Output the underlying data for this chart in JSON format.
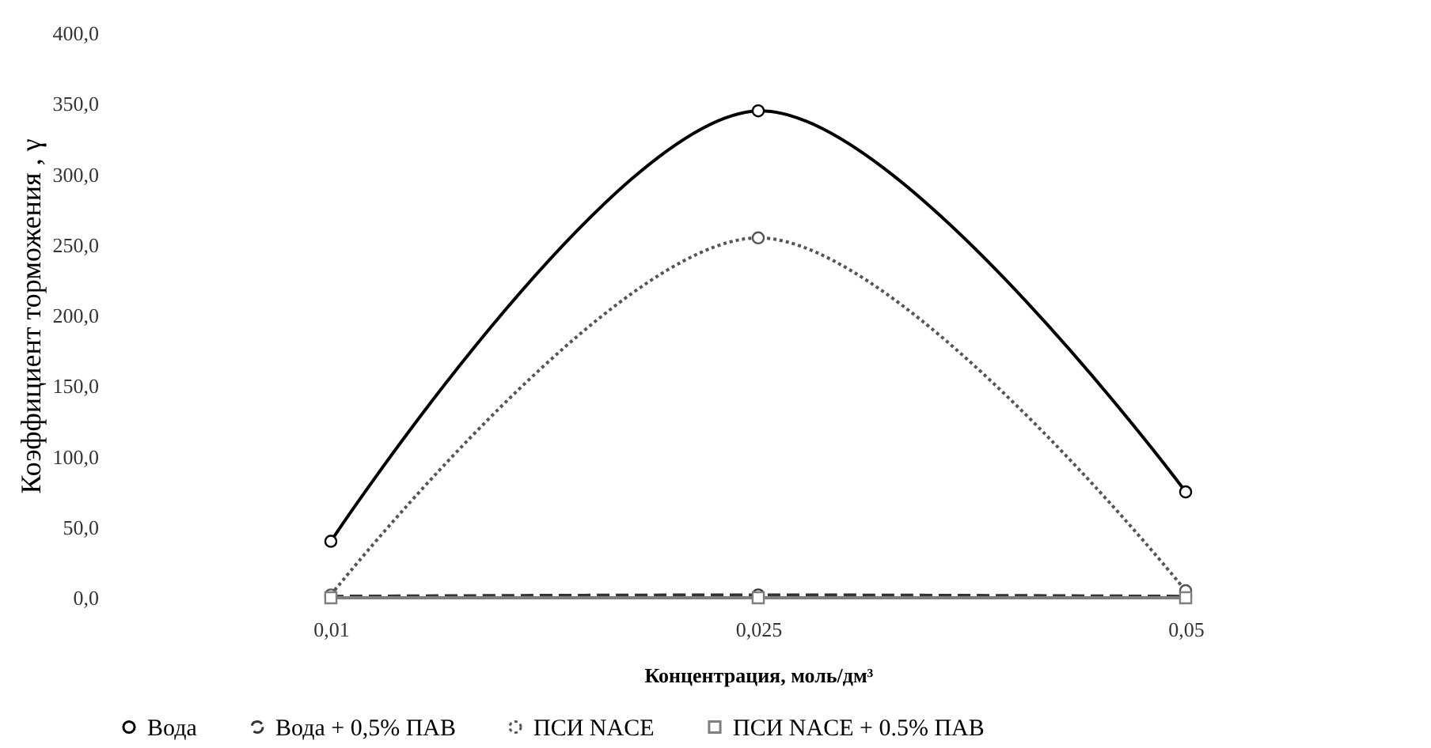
{
  "chart_data": {
    "type": "line",
    "xlabel": "Концентрация, моль/дм³",
    "ylabel": "Коэффициент торможения , γ",
    "categories": [
      "0,01",
      "0,025",
      "0,05"
    ],
    "series": [
      {
        "name": "Вода",
        "color": "#000000",
        "values": [
          40,
          345,
          75
        ],
        "marker": "circle",
        "line_style": "solid"
      },
      {
        "name": "Вода + 0,5% ПАВ",
        "color": "#333333",
        "values": [
          1,
          2,
          1
        ],
        "marker": "circle",
        "line_style": "dashed"
      },
      {
        "name": "ПСИ NACE",
        "color": "#555555",
        "values": [
          2,
          255,
          5
        ],
        "marker": "circle",
        "line_style": "dotted"
      },
      {
        "name": "ПСИ NACE + 0.5% ПАВ",
        "color": "#7f7f7f",
        "values": [
          0,
          0,
          0
        ],
        "marker": "square",
        "line_style": "solid"
      }
    ],
    "ylim": [
      0,
      400
    ],
    "yticks": [
      {
        "value": 0,
        "label": "0,0"
      },
      {
        "value": 50,
        "label": "50,0"
      },
      {
        "value": 100,
        "label": "100,0"
      },
      {
        "value": 150,
        "label": "150,0"
      },
      {
        "value": 200,
        "label": "200,0"
      },
      {
        "value": 250,
        "label": "250,0"
      },
      {
        "value": 300,
        "label": "300,0"
      },
      {
        "value": 350,
        "label": "350,0"
      },
      {
        "value": 400,
        "label": "400,0"
      }
    ],
    "legend": "bottom",
    "grid": false
  }
}
